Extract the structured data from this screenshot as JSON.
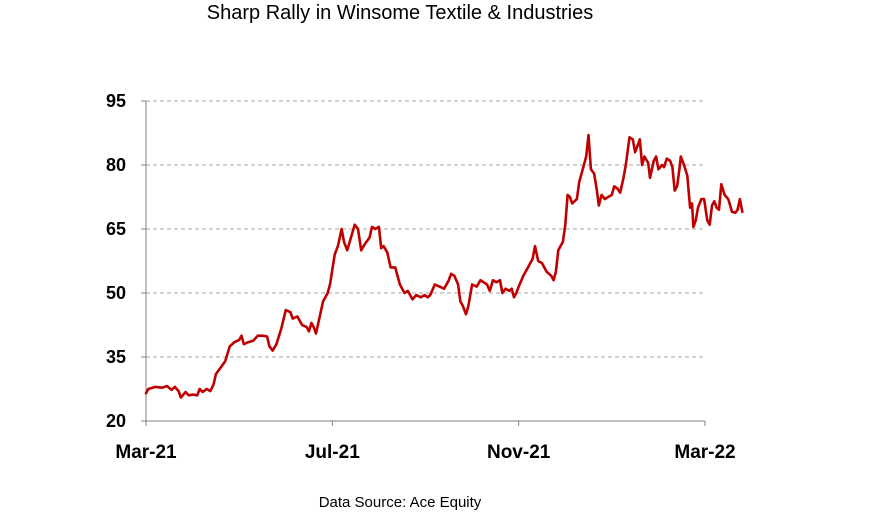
{
  "chart_data": {
    "type": "line",
    "title": "Sharp Rally in Winsome Textile & Industries",
    "source": "Data Source: Ace Equity",
    "xlabel": "",
    "ylabel": "",
    "ylim": [
      20,
      95
    ],
    "y_ticks": [
      20,
      35,
      50,
      65,
      80,
      95
    ],
    "y_tick_labels": [
      "20",
      "35",
      "50",
      "65",
      "80",
      "95"
    ],
    "x_tick_labels": [
      "Mar-21",
      "Jul-21",
      "Nov-21",
      "Mar-22"
    ],
    "x_tick_positions": [
      0,
      4,
      8,
      12
    ],
    "x_unit": "months since Mar-21",
    "grid": "horizontal dashed",
    "series": [
      {
        "name": "Winsome Textile & Industries",
        "color": "#c00000",
        "points": [
          [
            0.0,
            26.5
          ],
          [
            0.05,
            27.5
          ],
          [
            0.2,
            28.0
          ],
          [
            0.35,
            27.8
          ],
          [
            0.45,
            28.2
          ],
          [
            0.55,
            27.3
          ],
          [
            0.62,
            28.0
          ],
          [
            0.7,
            27.0
          ],
          [
            0.75,
            25.5
          ],
          [
            0.85,
            26.8
          ],
          [
            0.92,
            26.0
          ],
          [
            1.0,
            26.2
          ],
          [
            1.1,
            26.0
          ],
          [
            1.15,
            27.5
          ],
          [
            1.22,
            26.8
          ],
          [
            1.3,
            27.5
          ],
          [
            1.38,
            27.0
          ],
          [
            1.45,
            28.5
          ],
          [
            1.5,
            31.0
          ],
          [
            1.6,
            32.5
          ],
          [
            1.7,
            34.0
          ],
          [
            1.8,
            37.5
          ],
          [
            1.9,
            38.5
          ],
          [
            2.0,
            39.0
          ],
          [
            2.05,
            40.0
          ],
          [
            2.1,
            38.0
          ],
          [
            2.2,
            38.5
          ],
          [
            2.3,
            38.8
          ],
          [
            2.4,
            40.0
          ],
          [
            2.5,
            40.0
          ],
          [
            2.6,
            39.8
          ],
          [
            2.65,
            37.5
          ],
          [
            2.72,
            36.5
          ],
          [
            2.8,
            38.0
          ],
          [
            2.9,
            41.5
          ],
          [
            3.0,
            46.0
          ],
          [
            3.1,
            45.5
          ],
          [
            3.15,
            44.0
          ],
          [
            3.25,
            44.5
          ],
          [
            3.35,
            42.5
          ],
          [
            3.45,
            42.0
          ],
          [
            3.5,
            41.0
          ],
          [
            3.55,
            43.0
          ],
          [
            3.6,
            42.0
          ],
          [
            3.65,
            40.5
          ],
          [
            3.72,
            44.0
          ],
          [
            3.8,
            48.0
          ],
          [
            3.9,
            50.0
          ],
          [
            3.95,
            52.0
          ],
          [
            4.05,
            59.0
          ],
          [
            4.12,
            61.0
          ],
          [
            4.2,
            65.0
          ],
          [
            4.25,
            62.0
          ],
          [
            4.32,
            60.0
          ],
          [
            4.4,
            63.0
          ],
          [
            4.48,
            66.0
          ],
          [
            4.55,
            65.0
          ],
          [
            4.62,
            60.0
          ],
          [
            4.7,
            61.5
          ],
          [
            4.8,
            63.0
          ],
          [
            4.85,
            65.5
          ],
          [
            4.92,
            65.0
          ],
          [
            5.0,
            65.5
          ],
          [
            5.05,
            60.5
          ],
          [
            5.1,
            61.0
          ],
          [
            5.18,
            59.5
          ],
          [
            5.25,
            56.0
          ],
          [
            5.35,
            56.0
          ],
          [
            5.45,
            52.0
          ],
          [
            5.55,
            50.0
          ],
          [
            5.62,
            50.5
          ],
          [
            5.72,
            48.5
          ],
          [
            5.8,
            49.5
          ],
          [
            5.9,
            49.0
          ],
          [
            5.98,
            49.5
          ],
          [
            6.05,
            49.0
          ],
          [
            6.1,
            49.5
          ],
          [
            6.2,
            52.0
          ],
          [
            6.3,
            51.5
          ],
          [
            6.4,
            51.0
          ],
          [
            6.5,
            53.0
          ],
          [
            6.55,
            54.5
          ],
          [
            6.62,
            54.0
          ],
          [
            6.7,
            52.0
          ],
          [
            6.75,
            48.0
          ],
          [
            6.8,
            47.0
          ],
          [
            6.87,
            45.0
          ],
          [
            6.92,
            47.0
          ],
          [
            7.0,
            52.0
          ],
          [
            7.1,
            51.5
          ],
          [
            7.18,
            53.0
          ],
          [
            7.25,
            52.5
          ],
          [
            7.32,
            52.0
          ],
          [
            7.38,
            50.5
          ],
          [
            7.45,
            53.0
          ],
          [
            7.52,
            52.5
          ],
          [
            7.6,
            53.0
          ],
          [
            7.65,
            50.0
          ],
          [
            7.72,
            51.0
          ],
          [
            7.8,
            50.5
          ],
          [
            7.85,
            51.0
          ],
          [
            7.9,
            49.0
          ],
          [
            7.95,
            50.0
          ],
          [
            8.0,
            51.5
          ],
          [
            8.1,
            54.0
          ],
          [
            8.2,
            56.0
          ],
          [
            8.3,
            58.0
          ],
          [
            8.35,
            61.0
          ],
          [
            8.42,
            57.5
          ],
          [
            8.5,
            57.0
          ],
          [
            8.6,
            55.0
          ],
          [
            8.7,
            54.0
          ],
          [
            8.75,
            53.0
          ],
          [
            8.8,
            55.0
          ],
          [
            8.85,
            60.0
          ],
          [
            8.95,
            62.0
          ],
          [
            9.0,
            66.0
          ],
          [
            9.05,
            73.0
          ],
          [
            9.1,
            72.5
          ],
          [
            9.15,
            71.0
          ],
          [
            9.25,
            72.0
          ],
          [
            9.3,
            76.0
          ],
          [
            9.4,
            80.0
          ],
          [
            9.45,
            82.0
          ],
          [
            9.5,
            87.0
          ],
          [
            9.55,
            79.0
          ],
          [
            9.62,
            78.0
          ],
          [
            9.68,
            74.0
          ],
          [
            9.72,
            70.5
          ],
          [
            9.78,
            73.0
          ],
          [
            9.85,
            72.0
          ],
          [
            9.92,
            72.5
          ],
          [
            10.0,
            73.0
          ],
          [
            10.05,
            75.0
          ],
          [
            10.12,
            74.5
          ],
          [
            10.18,
            73.5
          ],
          [
            10.25,
            77.0
          ],
          [
            10.3,
            80.0
          ],
          [
            10.38,
            86.5
          ],
          [
            10.45,
            86.0
          ],
          [
            10.5,
            83.0
          ],
          [
            10.55,
            84.5
          ],
          [
            10.6,
            86.0
          ],
          [
            10.65,
            80.0
          ],
          [
            10.7,
            82.0
          ],
          [
            10.78,
            80.5
          ],
          [
            10.82,
            77.0
          ],
          [
            10.9,
            81.0
          ],
          [
            10.95,
            82.0
          ],
          [
            11.0,
            79.0
          ],
          [
            11.08,
            80.0
          ],
          [
            11.12,
            79.5
          ],
          [
            11.18,
            81.5
          ],
          [
            11.25,
            81.0
          ],
          [
            11.3,
            79.5
          ],
          [
            11.35,
            74.0
          ],
          [
            11.4,
            75.0
          ],
          [
            11.45,
            79.0
          ],
          [
            11.48,
            82.0
          ],
          [
            11.55,
            80.0
          ],
          [
            11.62,
            77.5
          ],
          [
            11.68,
            70.0
          ],
          [
            11.72,
            71.0
          ],
          [
            11.75,
            65.5
          ],
          [
            11.8,
            67.0
          ],
          [
            11.85,
            70.0
          ],
          [
            11.92,
            72.0
          ],
          [
            11.98,
            72.0
          ],
          [
            12.05,
            67.0
          ],
          [
            12.1,
            66.0
          ],
          [
            12.15,
            70.5
          ],
          [
            12.2,
            71.5
          ],
          [
            12.25,
            70.0
          ],
          [
            12.3,
            69.5
          ],
          [
            12.35,
            75.5
          ],
          [
            12.42,
            73.0
          ],
          [
            12.5,
            72.0
          ],
          [
            12.58,
            69.0
          ],
          [
            12.65,
            68.8
          ],
          [
            12.7,
            69.5
          ],
          [
            12.75,
            72.0
          ],
          [
            12.8,
            69.0
          ]
        ]
      }
    ]
  }
}
